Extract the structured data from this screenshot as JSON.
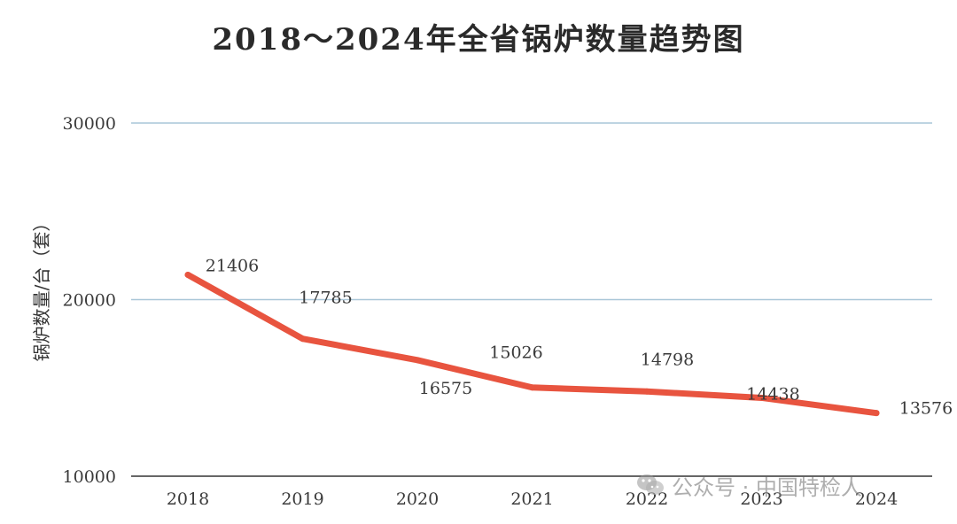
{
  "chart_data": {
    "type": "line",
    "title": "2018～2024年全省锅炉数量趋势图",
    "ylabel": "锅炉数量/台（套）",
    "xlabel": "",
    "categories": [
      "2018",
      "2019",
      "2020",
      "2021",
      "2022",
      "2023",
      "2024"
    ],
    "series": [
      {
        "values": [
          21406,
          17785,
          16575,
          15026,
          14798,
          14438,
          13576
        ],
        "color": "#e8543f"
      }
    ],
    "ylim": [
      10000,
      30000
    ],
    "yticks": [
      "10000",
      "20000",
      "30000"
    ],
    "grid": true,
    "grid_color": "#a9c6d8",
    "legend": "none"
  },
  "watermark": {
    "icon": "wechat-icon",
    "text": "公众号 · 中国特检人"
  }
}
